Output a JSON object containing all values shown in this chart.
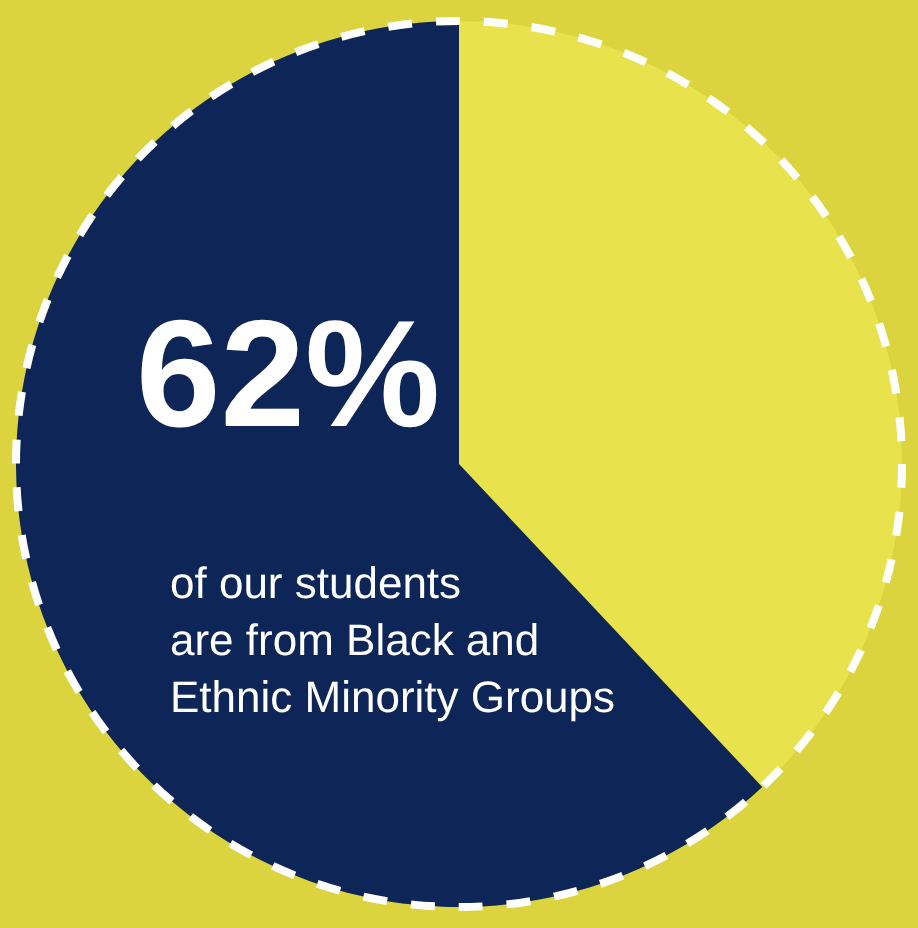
{
  "chart_data": {
    "type": "pie",
    "categories": [
      null,
      null
    ],
    "values": [
      38,
      62
    ],
    "colors": [
      "#e8e24c",
      "#0d2657"
    ],
    "value_labels": [
      null,
      "62%"
    ],
    "annotations": [
      "of our students\nare from Black and\nEthnic Minority Groups"
    ],
    "legend": false
  }
}
